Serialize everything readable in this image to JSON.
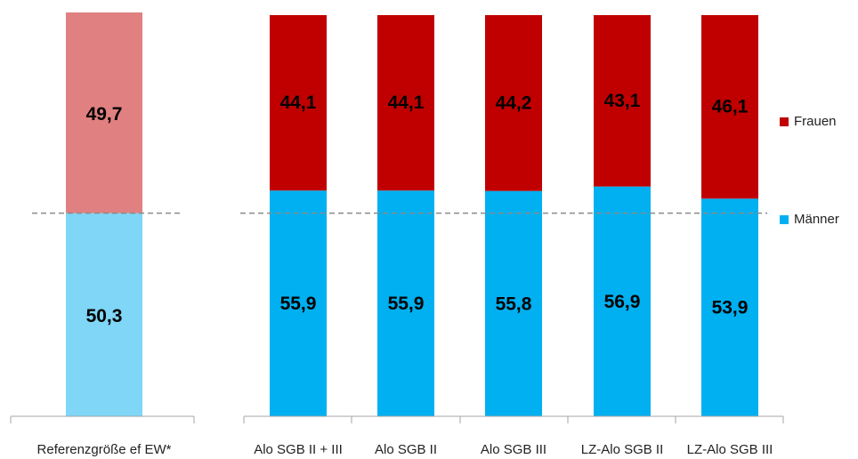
{
  "chart_data": {
    "type": "bar",
    "stacked": true,
    "percent_scale": true,
    "ylim": [
      0,
      100
    ],
    "reference": {
      "category": "Referenzgröße ef EW*",
      "maenner": 50.3,
      "frauen": 49.7,
      "maenner_label": "50,3",
      "frauen_label": "49,7",
      "color_maenner": "#7fd6f6",
      "color_frauen": "#e08080"
    },
    "categories": [
      "Alo SGB II + III",
      "Alo SGB II",
      "Alo SGB III",
      "LZ-Alo SGB II",
      "LZ-Alo SGB III"
    ],
    "series": [
      {
        "name": "Männer",
        "color": "#00b0f0",
        "values": [
          55.9,
          55.9,
          55.8,
          56.9,
          53.9
        ],
        "labels": [
          "55,9",
          "55,9",
          "55,8",
          "56,9",
          "53,9"
        ]
      },
      {
        "name": "Frauen",
        "color": "#c00000",
        "values": [
          44.1,
          44.1,
          44.2,
          43.1,
          46.1
        ],
        "labels": [
          "44,1",
          "44,1",
          "44,2",
          "43,1",
          "46,1"
        ]
      }
    ],
    "reference_line": 50.3,
    "legend": [
      "Frauen",
      "Männer"
    ],
    "legend_position": "right"
  }
}
